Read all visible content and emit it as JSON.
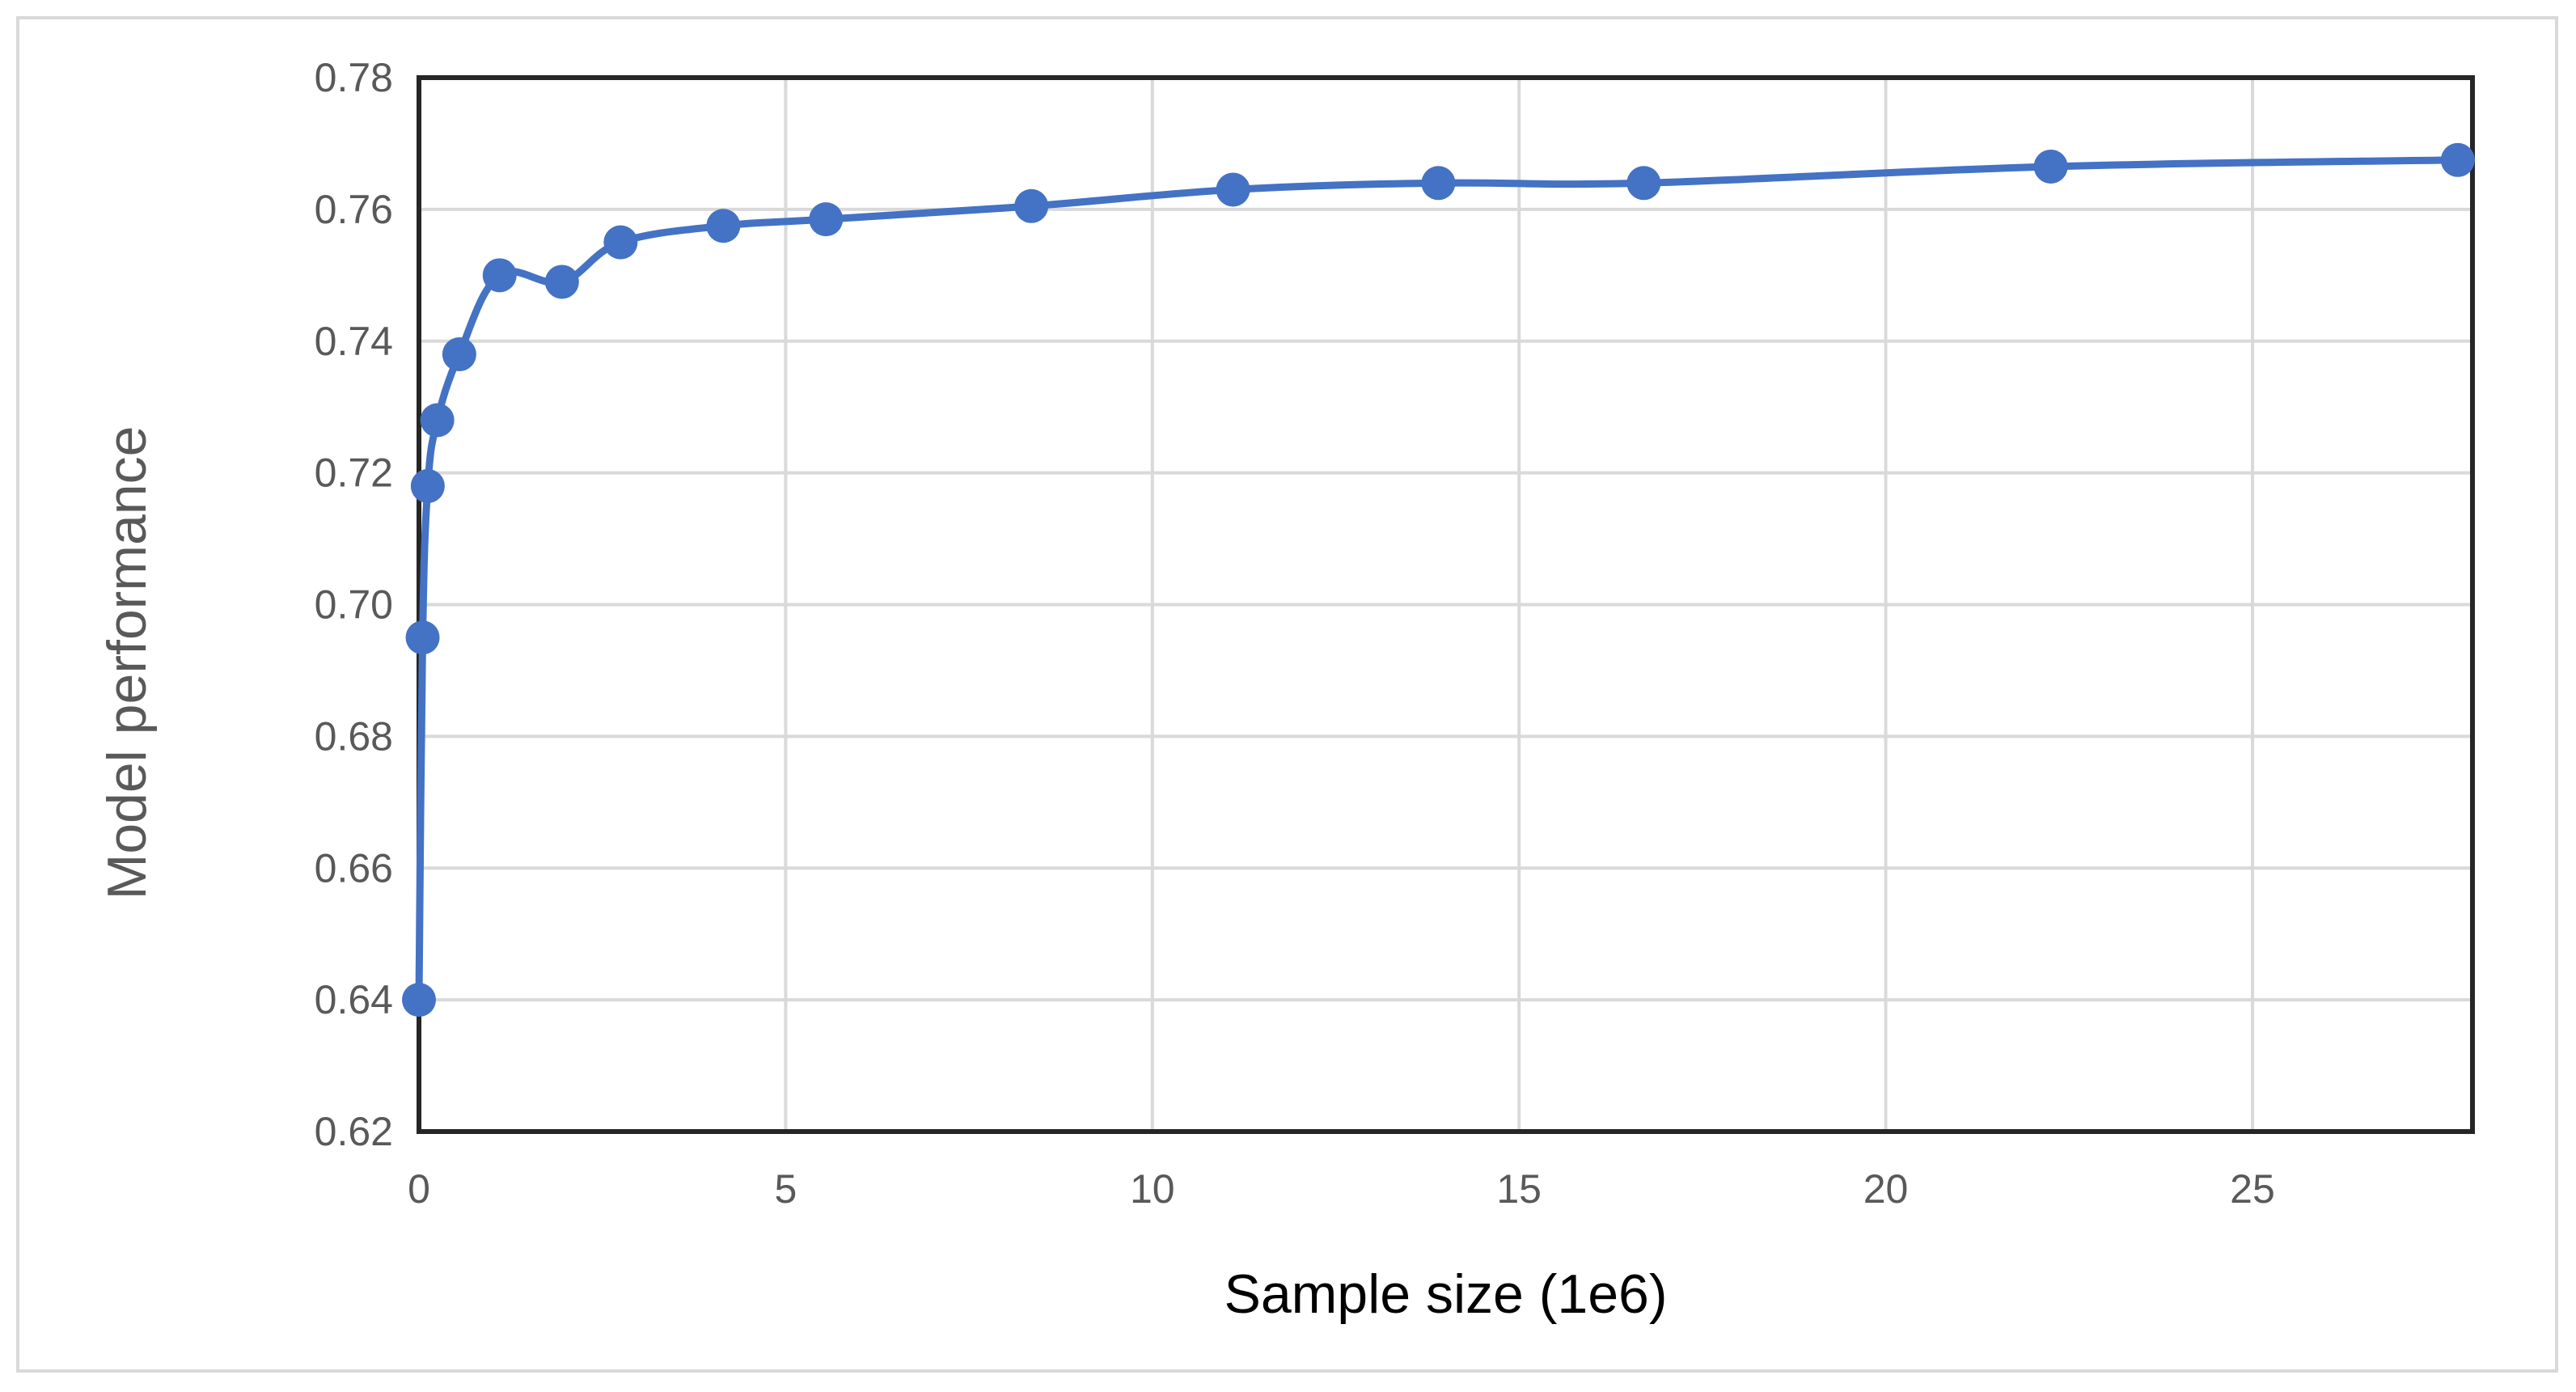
{
  "chart_data": {
    "type": "line",
    "title": "",
    "xlabel": "Sample size (1e6)",
    "ylabel": "Model performance",
    "xlim": [
      0,
      28
    ],
    "ylim": [
      0.62,
      0.78
    ],
    "x_ticks": [
      0,
      5,
      10,
      15,
      20,
      25
    ],
    "x_tick_labels": [
      "0",
      "5",
      "10",
      "15",
      "20",
      "25"
    ],
    "y_ticks": [
      0.62,
      0.64,
      0.66,
      0.68,
      0.7,
      0.72,
      0.74,
      0.76,
      0.78
    ],
    "y_tick_labels": [
      "0.62",
      "0.64",
      "0.66",
      "0.68",
      "0.70",
      "0.72",
      "0.74",
      "0.76",
      "0.78"
    ],
    "grid": true,
    "legend": "none",
    "series": [
      {
        "color": "#4472c4",
        "x": [
          0.0,
          0.05,
          0.12,
          0.25,
          0.55,
          1.1,
          1.95,
          2.75,
          4.15,
          5.55,
          8.35,
          11.1,
          13.9,
          16.7,
          22.25,
          27.8
        ],
        "y": [
          0.64,
          0.695,
          0.718,
          0.728,
          0.738,
          0.75,
          0.749,
          0.755,
          0.7575,
          0.7585,
          0.7605,
          0.763,
          0.764,
          0.764,
          0.7665,
          0.7675
        ]
      }
    ]
  }
}
